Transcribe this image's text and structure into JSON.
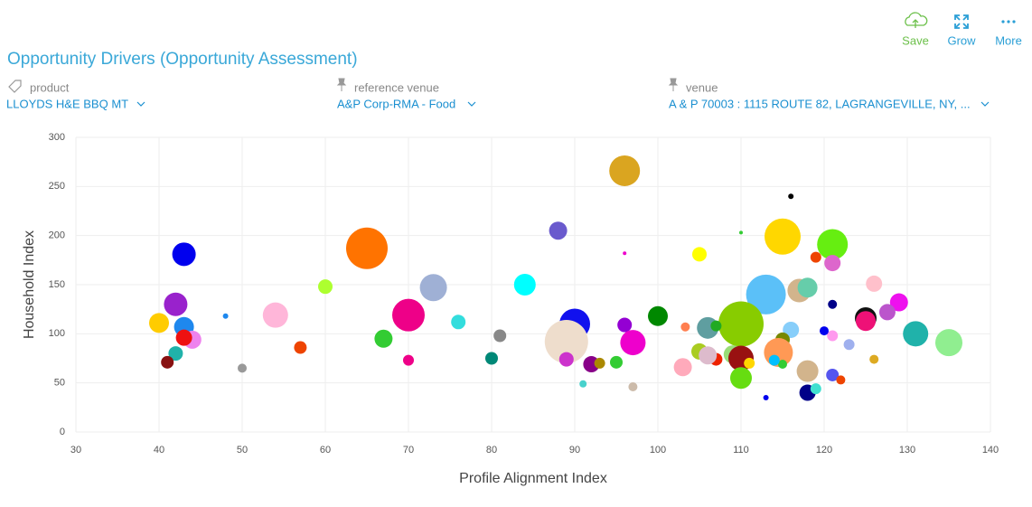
{
  "toolbar": {
    "save": "Save",
    "grow": "Grow",
    "more": "More"
  },
  "header": {
    "title": "Opportunity Drivers (Opportunity Assessment)"
  },
  "filters": [
    {
      "label": "product",
      "value": "LLOYDS H&E BBQ MT"
    },
    {
      "label": "reference venue",
      "value": "A&P Corp-RMA - Food"
    },
    {
      "label": "venue",
      "value": "A & P 70003 : 1115 ROUTE 82, LAGRANGEVILLE, NY, ..."
    }
  ],
  "chart_data": {
    "type": "bubble",
    "x_label": "Profile Alignment Index",
    "y_label": "Household Index",
    "xlim": [
      30,
      140
    ],
    "xticks": [
      30,
      40,
      50,
      60,
      70,
      80,
      90,
      100,
      110,
      120,
      130,
      140
    ],
    "ylim": [
      0,
      300
    ],
    "yticks": [
      0,
      50,
      100,
      150,
      200,
      250,
      300
    ],
    "grid": true,
    "x": [
      96,
      116,
      88,
      65,
      115,
      121,
      43,
      105,
      96,
      110,
      73,
      84,
      60,
      113,
      117,
      118,
      126,
      129,
      42,
      48,
      54,
      70,
      76,
      90,
      100,
      110,
      40,
      43,
      96,
      106,
      116,
      131,
      135,
      125,
      125,
      127.6,
      44,
      43,
      67,
      81,
      89,
      97,
      115,
      105,
      109,
      110,
      114.5,
      123,
      57,
      42,
      41,
      50,
      70,
      80,
      89,
      92,
      93,
      95,
      103,
      107,
      111,
      118,
      121,
      122,
      126,
      110,
      91,
      97,
      118,
      119,
      113,
      106,
      121,
      115,
      114,
      121,
      120,
      121,
      119,
      107,
      103.3
    ],
    "values": [
      266,
      240,
      205,
      187,
      199,
      191,
      181,
      181,
      182,
      203,
      147,
      150,
      148,
      140,
      144,
      147,
      151,
      132,
      130,
      118,
      119,
      119,
      112,
      110,
      118,
      110,
      111,
      107,
      109,
      106,
      104,
      100,
      91,
      116,
      113,
      122,
      94,
      96,
      95,
      98,
      92,
      91,
      94,
      82,
      79,
      75,
      81,
      89,
      86,
      80,
      71,
      65,
      73,
      75,
      74,
      69,
      70,
      71,
      66,
      74,
      70,
      62,
      58,
      53,
      74,
      55,
      49,
      46,
      40,
      44,
      35,
      78,
      130,
      69,
      73,
      98,
      103,
      172,
      178,
      108,
      107
    ],
    "sizes": [
      17,
      3,
      10,
      23,
      20,
      17,
      13,
      8,
      2,
      2,
      15,
      12,
      8,
      22,
      13,
      11,
      9,
      10,
      13,
      3,
      14,
      18,
      8,
      17,
      11,
      25,
      11,
      11,
      8,
      12,
      9,
      14,
      15,
      12,
      11,
      9,
      10,
      9,
      10,
      7,
      24,
      14,
      8,
      9,
      10,
      14,
      16,
      6,
      7,
      8,
      7,
      5,
      6,
      7,
      8,
      9,
      6,
      7,
      10,
      7,
      6,
      12,
      7,
      5,
      5,
      12,
      4,
      5,
      9,
      6,
      3,
      10,
      5,
      5,
      6,
      6,
      5,
      9,
      6,
      6,
      5
    ],
    "colors": [
      "#daa520",
      "#000000",
      "#6a5acd",
      "#ff7300",
      "#ffd700",
      "#66ee11",
      "#0000ee",
      "#ffff00",
      "#ee00cc",
      "#33cc33",
      "#9fb0d5",
      "#00ffff",
      "#adff2f",
      "#5bc0f8",
      "#d2b48c",
      "#66cdaa",
      "#ffc0cb",
      "#ee11ee",
      "#9922cc",
      "#1e88ee",
      "#ffb6d9",
      "#ee0088",
      "#33dddd",
      "#1111ee",
      "#008800",
      "#88cc00",
      "#ffcc00",
      "#1e88ee",
      "#9400d3",
      "#5f9ea0",
      "#87cefa",
      "#20b2aa",
      "#90ee90",
      "#111111",
      "#ee1177",
      "#bb55cc",
      "#ee82ee",
      "#ee1111",
      "#33cc33",
      "#888888",
      "#eeddcc",
      "#ee00cc",
      "#778800",
      "#aacc22",
      "#99dd77",
      "#991111",
      "#ff9955",
      "#9fb0ee",
      "#ee4400",
      "#20b2aa",
      "#881111",
      "#999999",
      "#ee0088",
      "#008877",
      "#cc33cc",
      "#880088",
      "#aa8800",
      "#33cc33",
      "#ffaabb",
      "#ee2200",
      "#ffd700",
      "#d2b48c",
      "#5555ee",
      "#ee4400",
      "#ddaa22",
      "#66dd11",
      "#48d1cc",
      "#ccbbaa",
      "#000088",
      "#40e0d0",
      "#0000ee",
      "#ddbbcc",
      "#000088",
      "#33cc33",
      "#00bfff",
      "#ff99ee",
      "#0000ee",
      "#dd66cc",
      "#ee4400",
      "#22aa22",
      "#ff7f50"
    ]
  }
}
